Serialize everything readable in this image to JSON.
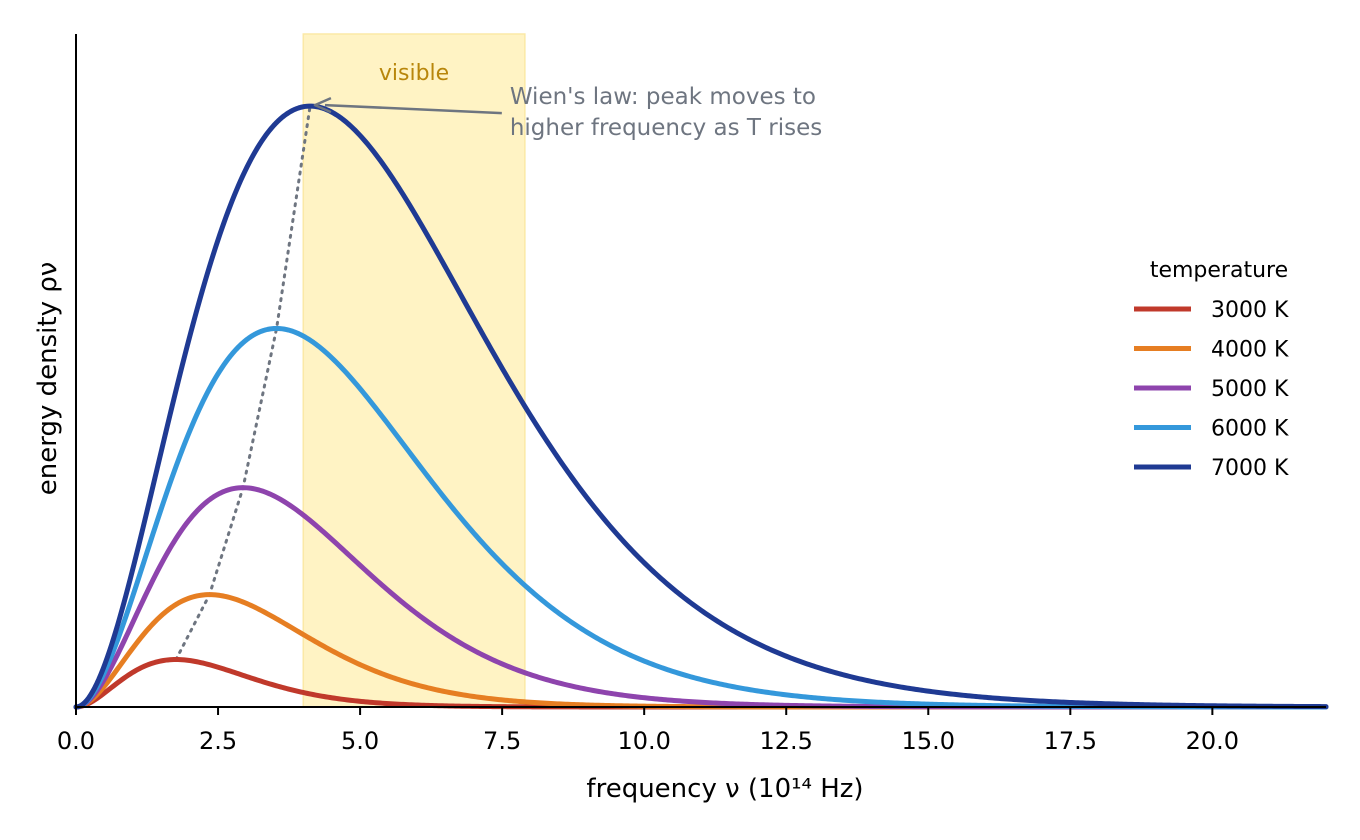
{
  "chart_data": {
    "type": "line",
    "xlabel": "frequency ν (10¹⁴ Hz)",
    "ylabel": "energy density ρν",
    "xlim": [
      0,
      22
    ],
    "ylim": [
      0,
      1.12
    ],
    "x_ticks": [
      "0.0",
      "2.5",
      "5.0",
      "7.5",
      "10.0",
      "12.5",
      "15.0",
      "17.5",
      "20.0"
    ],
    "x_tick_values": [
      0,
      2.5,
      5,
      7.5,
      10,
      12.5,
      15,
      17.5,
      20
    ],
    "grid": false,
    "y_ticks_shown": false,
    "legend": {
      "title": "temperature",
      "placement": "center-right"
    },
    "band": {
      "label": "visible",
      "x_range": [
        4.0,
        7.9
      ],
      "color": "#fff3c4",
      "label_color": "#b8860b"
    },
    "annotation": {
      "text_lines": [
        "Wien's law: peak moves to",
        "higher frequency as T rises"
      ],
      "arrow_target": [
        4.17,
        1.0
      ],
      "text_anchor": [
        7.6,
        1.0
      ],
      "color": "#6e7580"
    },
    "peak_line": {
      "style": "dotted",
      "color": "#6e7580",
      "x": [
        1.76,
        2.35,
        2.94,
        3.53,
        4.12
      ],
      "y": [
        0.079,
        0.187,
        0.365,
        0.63,
        1.0
      ]
    },
    "series": [
      {
        "name": "3000 K",
        "temperature_K": 3000,
        "color": "#c0392b",
        "peak_x": 1.76,
        "peak_y": 0.079
      },
      {
        "name": "4000 K",
        "temperature_K": 4000,
        "color": "#e67e22",
        "peak_x": 2.35,
        "peak_y": 0.187
      },
      {
        "name": "5000 K",
        "temperature_K": 5000,
        "color": "#8e44ad",
        "peak_x": 2.94,
        "peak_y": 0.365
      },
      {
        "name": "6000 K",
        "temperature_K": 6000,
        "color": "#3498db",
        "peak_x": 3.53,
        "peak_y": 0.63
      },
      {
        "name": "7000 K",
        "temperature_K": 7000,
        "color": "#1f3a93",
        "peak_x": 4.12,
        "peak_y": 1.0
      }
    ]
  }
}
